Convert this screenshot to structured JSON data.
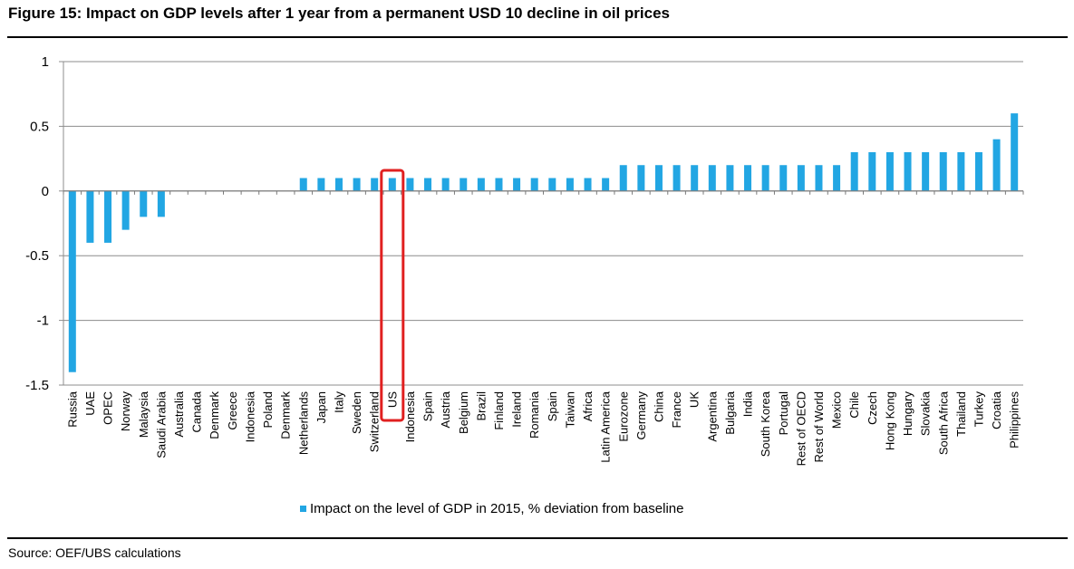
{
  "figure": {
    "title": "Figure 15: Impact on GDP levels after 1 year from a permanent USD 10 decline in oil prices",
    "source": "Source:  OEF/UBS calculations"
  },
  "colors": {
    "bar": "#22a6e3",
    "grid": "#8c8c8c",
    "highlight": "#e02020"
  },
  "chart_data": {
    "type": "bar",
    "title": "",
    "xlabel": "",
    "ylabel": "",
    "ylim": [
      -1.5,
      1
    ],
    "yticks": [
      1,
      0.5,
      0,
      -0.5,
      -1,
      -1.5
    ],
    "ytick_labels": [
      "1",
      "0.5",
      "0",
      "-0.5",
      "-1",
      "-1.5"
    ],
    "grid": true,
    "legend_position": "bottom-center",
    "highlighted_category": "US",
    "categories": [
      "Russia",
      "UAE",
      "OPEC",
      "Norway",
      "Malaysia",
      "Saudi Arabia",
      "Australia",
      "Canada",
      "Denmark",
      "Greece",
      "Indonesia",
      "Poland",
      "Denmark",
      "Netherlands",
      "Japan",
      "Italy",
      "Sweden",
      "Switzerland",
      "US",
      "Indonesia",
      "Spain",
      "Austria",
      "Belgium",
      "Brazil",
      "Finland",
      "Ireland",
      "Romania",
      "Spain",
      "Taiwan",
      "Africa",
      "Latin America",
      "Eurozone",
      "Germany",
      "China",
      "France",
      "UK",
      "Argentina",
      "Bulgaria",
      "India",
      "South Korea",
      "Portugal",
      "Rest of OECD",
      "Rest of World",
      "Mexico",
      "Chile",
      "Czech",
      "Hong Kong",
      "Hungary",
      "Slovakia",
      "South Africa",
      "Thailand",
      "Turkey",
      "Croatia",
      "Philippines"
    ],
    "series": [
      {
        "name": "Impact on the level of GDP in 2015, % deviation from baseline",
        "values": [
          -1.4,
          -0.4,
          -0.4,
          -0.3,
          -0.2,
          -0.2,
          0,
          0,
          0,
          0,
          0,
          0,
          0,
          0.1,
          0.1,
          0.1,
          0.1,
          0.1,
          0.1,
          0.1,
          0.1,
          0.1,
          0.1,
          0.1,
          0.1,
          0.1,
          0.1,
          0.1,
          0.1,
          0.1,
          0.1,
          0.2,
          0.2,
          0.2,
          0.2,
          0.2,
          0.2,
          0.2,
          0.2,
          0.2,
          0.2,
          0.2,
          0.2,
          0.2,
          0.3,
          0.3,
          0.3,
          0.3,
          0.3,
          0.3,
          0.3,
          0.3,
          0.4,
          0.6
        ]
      }
    ]
  }
}
